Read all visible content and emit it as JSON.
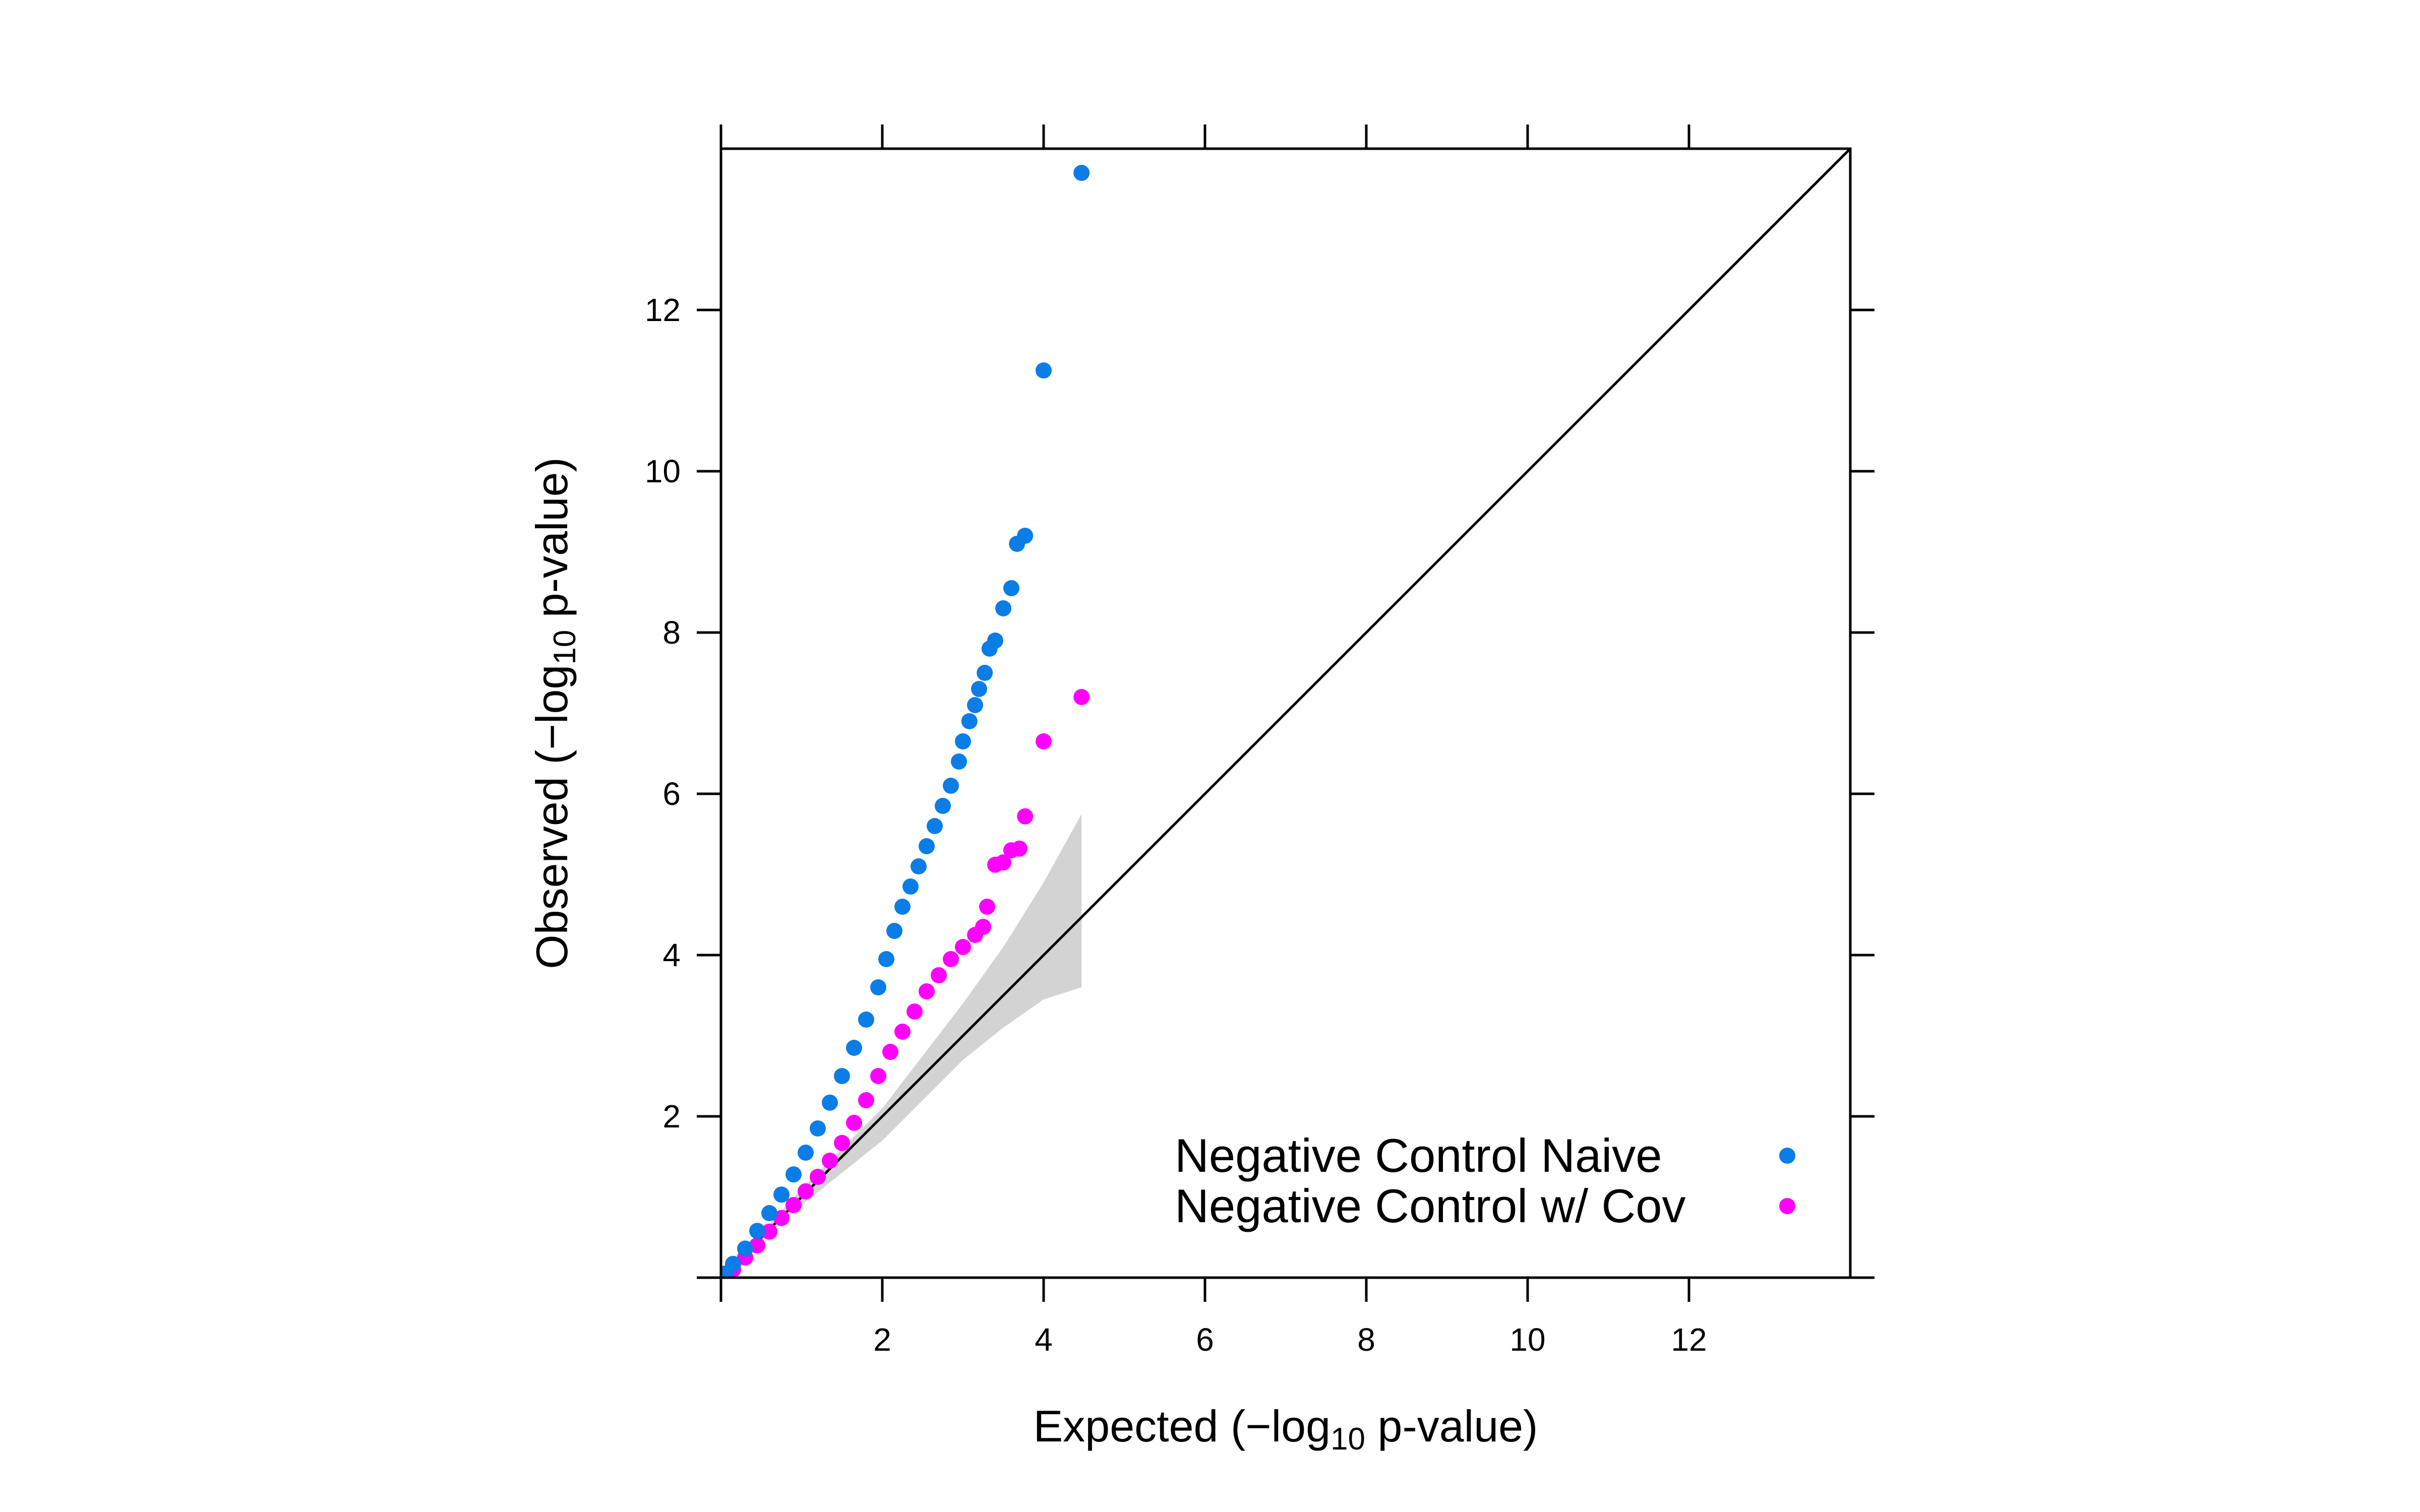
{
  "chart_data": {
    "type": "scatter",
    "xlabel": {
      "pre": "Expected (−log",
      "sub": "10",
      "post": " p-value)"
    },
    "ylabel": {
      "pre": "Observed (−log",
      "sub": "10",
      "post": " p-value)"
    },
    "xlim": [
      0,
      14
    ],
    "ylim": [
      0,
      14
    ],
    "xticks": [
      2,
      4,
      6,
      8,
      10,
      12
    ],
    "yticks": [
      2,
      4,
      6,
      8,
      10,
      12
    ],
    "grid": false,
    "legend_position": "bottom-right",
    "reference_line": {
      "from": [
        0,
        0
      ],
      "to": [
        14,
        14
      ],
      "color": "#000000"
    },
    "confidence_band": {
      "color": "#d3d3d3",
      "x": [
        0,
        0.5,
        1,
        1.5,
        2,
        2.5,
        3,
        3.5,
        4,
        4.47
      ],
      "lower": [
        0,
        0.45,
        0.9,
        1.3,
        1.7,
        2.2,
        2.7,
        3.1,
        3.45,
        3.6
      ],
      "upper": [
        0,
        0.55,
        1.1,
        1.6,
        2.1,
        2.75,
        3.4,
        4.1,
        4.9,
        5.75
      ]
    },
    "series": [
      {
        "name": "Negative Control Naive",
        "color": "#0b7de6",
        "points": [
          [
            0.05,
            0.05
          ],
          [
            0.15,
            0.17
          ],
          [
            0.3,
            0.36
          ],
          [
            0.45,
            0.58
          ],
          [
            0.6,
            0.8
          ],
          [
            0.75,
            1.03
          ],
          [
            0.9,
            1.28
          ],
          [
            1.05,
            1.55
          ],
          [
            1.2,
            1.85
          ],
          [
            1.35,
            2.17
          ],
          [
            1.5,
            2.5
          ],
          [
            1.65,
            2.85
          ],
          [
            1.8,
            3.2
          ],
          [
            1.95,
            3.6
          ],
          [
            2.05,
            3.95
          ],
          [
            2.15,
            4.3
          ],
          [
            2.25,
            4.6
          ],
          [
            2.35,
            4.85
          ],
          [
            2.45,
            5.1
          ],
          [
            2.55,
            5.35
          ],
          [
            2.65,
            5.6
          ],
          [
            2.75,
            5.85
          ],
          [
            2.85,
            6.1
          ],
          [
            2.95,
            6.4
          ],
          [
            3.0,
            6.65
          ],
          [
            3.08,
            6.9
          ],
          [
            3.15,
            7.1
          ],
          [
            3.2,
            7.3
          ],
          [
            3.27,
            7.5
          ],
          [
            3.33,
            7.8
          ],
          [
            3.4,
            7.9
          ],
          [
            3.5,
            8.3
          ],
          [
            3.6,
            8.55
          ],
          [
            3.67,
            9.1
          ],
          [
            3.77,
            9.2
          ],
          [
            4.0,
            11.25
          ],
          [
            4.47,
            13.7
          ]
        ]
      },
      {
        "name": "Negative Control w/ Cov",
        "color": "#ff00ff",
        "points": [
          [
            0.05,
            0.02
          ],
          [
            0.15,
            0.1
          ],
          [
            0.3,
            0.25
          ],
          [
            0.45,
            0.4
          ],
          [
            0.6,
            0.57
          ],
          [
            0.75,
            0.74
          ],
          [
            0.9,
            0.9
          ],
          [
            1.05,
            1.07
          ],
          [
            1.2,
            1.25
          ],
          [
            1.35,
            1.45
          ],
          [
            1.5,
            1.67
          ],
          [
            1.65,
            1.92
          ],
          [
            1.8,
            2.2
          ],
          [
            1.95,
            2.5
          ],
          [
            2.1,
            2.8
          ],
          [
            2.25,
            3.05
          ],
          [
            2.4,
            3.3
          ],
          [
            2.55,
            3.55
          ],
          [
            2.7,
            3.75
          ],
          [
            2.85,
            3.95
          ],
          [
            3.0,
            4.1
          ],
          [
            3.15,
            4.25
          ],
          [
            3.25,
            4.35
          ],
          [
            3.3,
            4.6
          ],
          [
            3.4,
            5.12
          ],
          [
            3.5,
            5.15
          ],
          [
            3.6,
            5.3
          ],
          [
            3.7,
            5.32
          ],
          [
            3.77,
            5.72
          ],
          [
            4.0,
            6.65
          ],
          [
            4.47,
            7.2
          ]
        ]
      }
    ]
  }
}
